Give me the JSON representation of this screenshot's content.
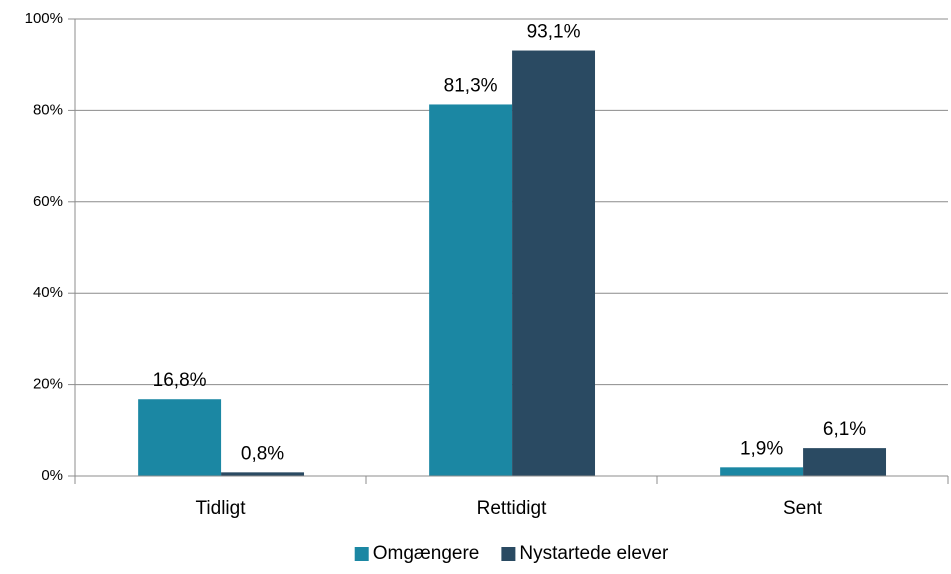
{
  "chart_data": {
    "type": "bar",
    "categories": [
      "Tidligt",
      "Rettidigt",
      "Sent"
    ],
    "series": [
      {
        "name": "Omgængere",
        "color": "#1b87a3",
        "values": [
          16.8,
          81.3,
          1.9
        ],
        "value_labels": [
          "16,8%",
          "81,3%",
          "1,9%"
        ]
      },
      {
        "name": "Nystartede elever",
        "color": "#2a4a62",
        "values": [
          0.8,
          93.1,
          6.1
        ],
        "value_labels": [
          "0,8%",
          "93,1%",
          "6,1%"
        ]
      }
    ],
    "ylim": [
      0,
      100
    ],
    "yticks": [
      {
        "value": 0,
        "label": "0%"
      },
      {
        "value": 20,
        "label": "20%"
      },
      {
        "value": 40,
        "label": "40%"
      },
      {
        "value": 60,
        "label": "60%"
      },
      {
        "value": 80,
        "label": "80%"
      },
      {
        "value": 100,
        "label": "100%"
      }
    ],
    "grid": true,
    "legend": "bottom"
  }
}
